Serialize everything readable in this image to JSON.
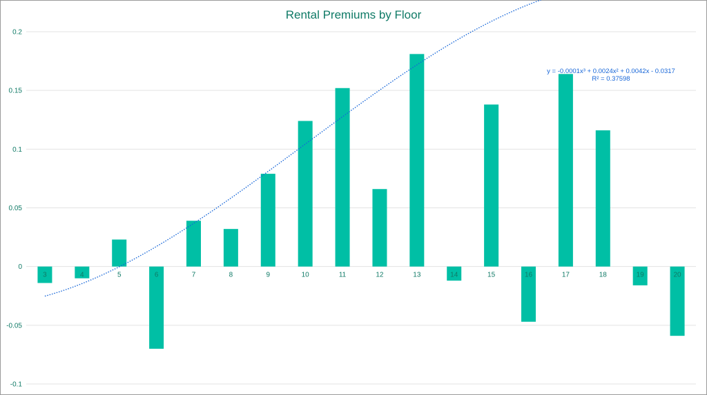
{
  "chart_data": {
    "type": "bar",
    "title": "Rental Premiums by Floor",
    "xlabel": "",
    "ylabel": "",
    "categories": [
      "3",
      "4",
      "5",
      "6",
      "7",
      "8",
      "9",
      "10",
      "11",
      "12",
      "13",
      "14",
      "15",
      "16",
      "17",
      "18",
      "19",
      "20"
    ],
    "values": [
      -0.014,
      -0.01,
      0.023,
      -0.07,
      0.039,
      0.032,
      0.079,
      0.124,
      0.152,
      0.066,
      0.181,
      -0.012,
      0.138,
      -0.047,
      0.164,
      0.116,
      -0.016,
      -0.059
    ],
    "ylim": [
      -0.1,
      0.2
    ],
    "yticks": [
      0.2,
      0.15,
      0.1,
      0.05,
      0,
      -0.05,
      -0.1
    ],
    "ytick_labels": [
      "0.2",
      "0.15",
      "0.1",
      "0.05",
      "0",
      "-0.05",
      "-0.1"
    ],
    "grid": true,
    "legend": "none",
    "bar_color": "#00bfa5",
    "trendline": {
      "type": "polynomial",
      "order": 3,
      "color": "#1565d8",
      "coefficients": [
        -0.0001,
        0.0024,
        0.0042,
        -0.0317
      ],
      "equation": "y = -0.0001x³ + 0.0024x² + 0.0042x - 0.0317",
      "r_squared": "R² = 0.37598"
    }
  }
}
